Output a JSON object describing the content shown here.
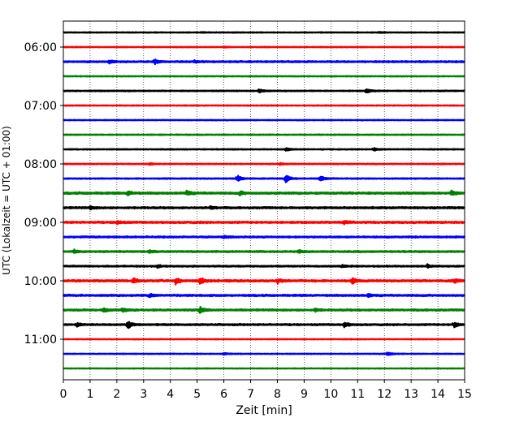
{
  "chart_data": {
    "type": "line",
    "title": "",
    "xlabel": "Zeit  [min]",
    "ylabel": "UTC (Lokalzeit = UTC + 01:00)",
    "xlim": [
      0,
      15
    ],
    "x_ticks": [
      "0",
      "1",
      "2",
      "3",
      "4",
      "5",
      "6",
      "7",
      "8",
      "9",
      "10",
      "11",
      "12",
      "13",
      "14",
      "15"
    ],
    "y_ticks": [
      "06:00",
      "07:00",
      "08:00",
      "09:00",
      "10:00",
      "11:00"
    ],
    "grid": "vertical dotted lines at each minute",
    "traces": [
      {
        "start": "05:45",
        "color": "#000000",
        "amplitude": 0.35,
        "events": [
          {
            "t": 5.2,
            "a": 0.3
          },
          {
            "t": 11.8,
            "a": 0.3
          }
        ]
      },
      {
        "start": "06:00",
        "color": "#ff0000",
        "amplitude": 0.35,
        "events": [
          {
            "t": 6.0,
            "a": 0.25
          }
        ]
      },
      {
        "start": "06:15",
        "color": "#0000ff",
        "amplitude": 0.7,
        "events": [
          {
            "t": 1.7,
            "a": 0.9
          },
          {
            "t": 3.4,
            "a": 1.4
          },
          {
            "t": 4.9,
            "a": 0.6
          }
        ]
      },
      {
        "start": "06:30",
        "color": "#008000",
        "amplitude": 0.35,
        "events": []
      },
      {
        "start": "06:45",
        "color": "#000000",
        "amplitude": 0.45,
        "events": [
          {
            "t": 7.3,
            "a": 1.3
          },
          {
            "t": 11.3,
            "a": 1.6
          }
        ]
      },
      {
        "start": "07:00",
        "color": "#ff0000",
        "amplitude": 0.35,
        "events": []
      },
      {
        "start": "07:15",
        "color": "#0000ff",
        "amplitude": 0.35,
        "events": []
      },
      {
        "start": "07:30",
        "color": "#008000",
        "amplitude": 0.4,
        "events": []
      },
      {
        "start": "07:45",
        "color": "#000000",
        "amplitude": 0.4,
        "events": [
          {
            "t": 8.3,
            "a": 0.9
          },
          {
            "t": 11.6,
            "a": 0.8
          }
        ]
      },
      {
        "start": "08:00",
        "color": "#ff0000",
        "amplitude": 0.4,
        "events": [
          {
            "t": 3.2,
            "a": 0.6
          },
          {
            "t": 8.1,
            "a": 0.6
          }
        ]
      },
      {
        "start": "08:15",
        "color": "#0000ff",
        "amplitude": 0.45,
        "events": [
          {
            "t": 6.5,
            "a": 2.0
          },
          {
            "t": 8.3,
            "a": 2.6
          },
          {
            "t": 9.6,
            "a": 1.6
          }
        ]
      },
      {
        "start": "08:30",
        "color": "#008000",
        "amplitude": 0.9,
        "events": [
          {
            "t": 2.4,
            "a": 1.5
          },
          {
            "t": 4.6,
            "a": 1.5
          },
          {
            "t": 6.6,
            "a": 1.1
          },
          {
            "t": 14.5,
            "a": 1.4
          }
        ]
      },
      {
        "start": "08:45",
        "color": "#000000",
        "amplitude": 0.8,
        "events": [
          {
            "t": 1.0,
            "a": 0.9
          },
          {
            "t": 5.5,
            "a": 0.9
          }
        ]
      },
      {
        "start": "09:00",
        "color": "#ff0000",
        "amplitude": 0.85,
        "events": [
          {
            "t": 2.0,
            "a": 0.9
          },
          {
            "t": 10.5,
            "a": 0.9
          }
        ]
      },
      {
        "start": "09:15",
        "color": "#0000ff",
        "amplitude": 0.7,
        "events": [
          {
            "t": 6.0,
            "a": 0.8
          }
        ]
      },
      {
        "start": "09:30",
        "color": "#008000",
        "amplitude": 0.7,
        "events": [
          {
            "t": 0.4,
            "a": 1.1
          },
          {
            "t": 3.2,
            "a": 0.9
          },
          {
            "t": 8.8,
            "a": 0.9
          }
        ]
      },
      {
        "start": "09:45",
        "color": "#000000",
        "amplitude": 0.6,
        "events": [
          {
            "t": 3.5,
            "a": 0.8
          },
          {
            "t": 10.4,
            "a": 0.9
          },
          {
            "t": 13.6,
            "a": 1.1
          }
        ]
      },
      {
        "start": "10:00",
        "color": "#ff0000",
        "amplitude": 0.9,
        "events": [
          {
            "t": 2.6,
            "a": 1.6
          },
          {
            "t": 4.2,
            "a": 1.7
          },
          {
            "t": 5.1,
            "a": 2.2
          },
          {
            "t": 8.0,
            "a": 1.4
          },
          {
            "t": 10.8,
            "a": 1.4
          },
          {
            "t": 14.6,
            "a": 1.4
          }
        ]
      },
      {
        "start": "10:15",
        "color": "#0000ff",
        "amplitude": 0.8,
        "events": [
          {
            "t": 3.2,
            "a": 1.0
          },
          {
            "t": 11.4,
            "a": 0.9
          }
        ]
      },
      {
        "start": "10:30",
        "color": "#008000",
        "amplitude": 0.8,
        "events": [
          {
            "t": 1.5,
            "a": 1.3
          },
          {
            "t": 2.2,
            "a": 1.2
          },
          {
            "t": 5.1,
            "a": 1.9
          },
          {
            "t": 9.4,
            "a": 0.9
          }
        ]
      },
      {
        "start": "10:45",
        "color": "#000000",
        "amplitude": 0.7,
        "events": [
          {
            "t": 0.5,
            "a": 1.2
          },
          {
            "t": 2.4,
            "a": 2.4
          },
          {
            "t": 10.5,
            "a": 1.6
          },
          {
            "t": 14.6,
            "a": 1.6
          }
        ]
      },
      {
        "start": "11:00",
        "color": "#ff0000",
        "amplitude": 0.3,
        "events": []
      },
      {
        "start": "11:15",
        "color": "#0000ff",
        "amplitude": 0.35,
        "events": [
          {
            "t": 6.0,
            "a": 0.5
          },
          {
            "t": 12.1,
            "a": 1.3
          }
        ]
      },
      {
        "start": "11:30",
        "color": "#008000",
        "amplitude": 0.3,
        "events": []
      }
    ]
  }
}
